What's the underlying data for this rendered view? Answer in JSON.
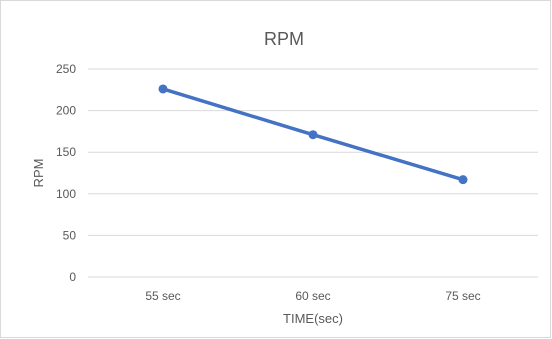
{
  "chart_data": {
    "type": "line",
    "title": "RPM",
    "xlabel": "TIME(sec)",
    "ylabel": "RPM",
    "categories": [
      "55 sec",
      "60 sec",
      "75 sec"
    ],
    "series": [
      {
        "values": [
          226,
          171,
          117
        ],
        "color": "#4472c4"
      }
    ],
    "ylim": [
      0,
      250
    ],
    "yticks": [
      0,
      50,
      100,
      150,
      200,
      250
    ],
    "grid": true,
    "legend": "none"
  }
}
